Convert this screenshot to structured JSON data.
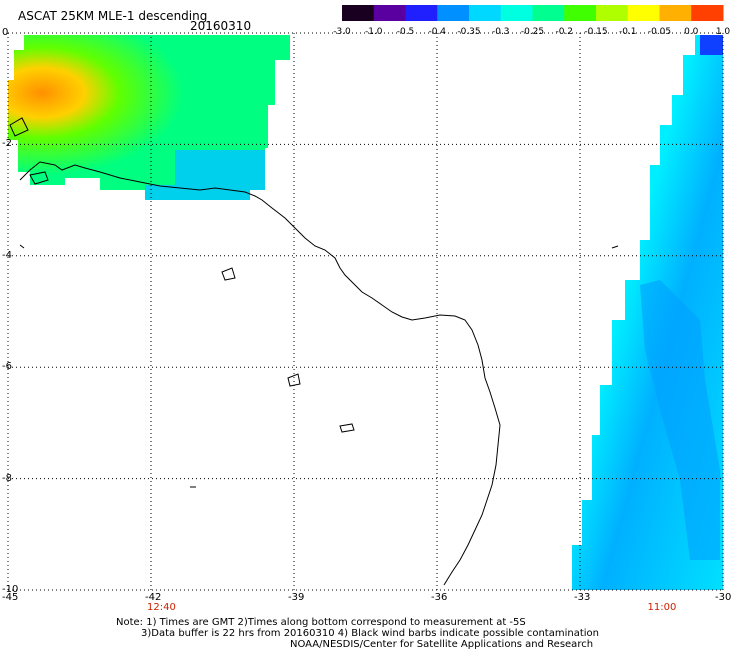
{
  "header": {
    "title": "ASCAT 25KM MLE-1 descending",
    "date": "20160310"
  },
  "colorbar": {
    "labels": [
      "-3.0",
      "-1.0",
      "-0.5",
      "-0.4",
      "-0.35",
      "-0.3",
      "-0.25",
      "-0.2",
      "-0.15",
      "-0.1",
      "-0.05",
      "0.0",
      "1.0"
    ],
    "colors": [
      "#1a0020",
      "#5a00a0",
      "#2020ff",
      "#0090ff",
      "#00d8ff",
      "#00ffe0",
      "#00ff90",
      "#40ff00",
      "#b0ff00",
      "#ffff00",
      "#ffb000",
      "#ff4000"
    ]
  },
  "map": {
    "lon_ticks": [
      "-45",
      "-42",
      "-39",
      "-36",
      "-33",
      "-30"
    ],
    "lat_ticks": [
      "0",
      "-2",
      "-4",
      "-6",
      "-8",
      "-10"
    ],
    "lon_range": [
      -45,
      -30
    ],
    "lat_range": [
      -10,
      0
    ],
    "times": [
      {
        "label": "12:40",
        "lon": -42
      },
      {
        "label": "11:00",
        "lon": -31.5
      }
    ]
  },
  "footer": {
    "note1": "Note: 1) Times are GMT 2)Times along bottom correspond to measurement at -5S",
    "note2": "3)Data buffer is 22 hrs from 20160310 4) Black wind barbs indicate possible contamination",
    "note3": "NOAA/NESDIS/Center for Satellite Applications and Research"
  }
}
